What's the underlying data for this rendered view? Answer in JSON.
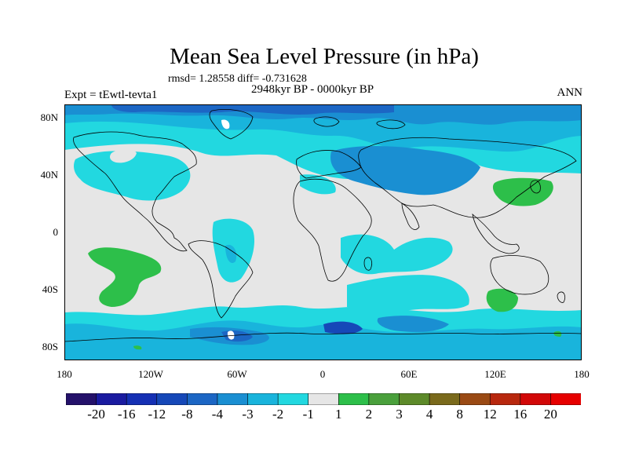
{
  "title": "Mean Sea Level Pressure (in hPa)",
  "stats": "rmsd= 1.28558 diff= -0.731628",
  "period": "2948kyr BP - 0000kyr BP",
  "experiment": "Expt = tEwtl-tevta1",
  "season": "ANN",
  "lat_ticks": [
    "80N",
    "40N",
    "0",
    "40S",
    "80S"
  ],
  "lon_ticks": [
    "180",
    "120W",
    "60W",
    "0",
    "60E",
    "120E",
    "180"
  ],
  "colorbar": {
    "labels": [
      "-20",
      "-16",
      "-12",
      "-8",
      "-4",
      "-3",
      "-2",
      "-1",
      "1",
      "2",
      "3",
      "4",
      "8",
      "12",
      "16",
      "20"
    ],
    "colors": [
      "#24116a",
      "#1a1ba0",
      "#1530b4",
      "#1648b8",
      "#1c66c4",
      "#1a8fd2",
      "#19b4dc",
      "#22d8e0",
      "#e6e6e6",
      "#2dbf4a",
      "#4aa03c",
      "#5d8a2a",
      "#7a6a1c",
      "#9a4a14",
      "#b8280e",
      "#d20808",
      "#e60000"
    ]
  },
  "colors": {
    "land_outline": "#000000",
    "neutral": "#e6e6e6"
  }
}
